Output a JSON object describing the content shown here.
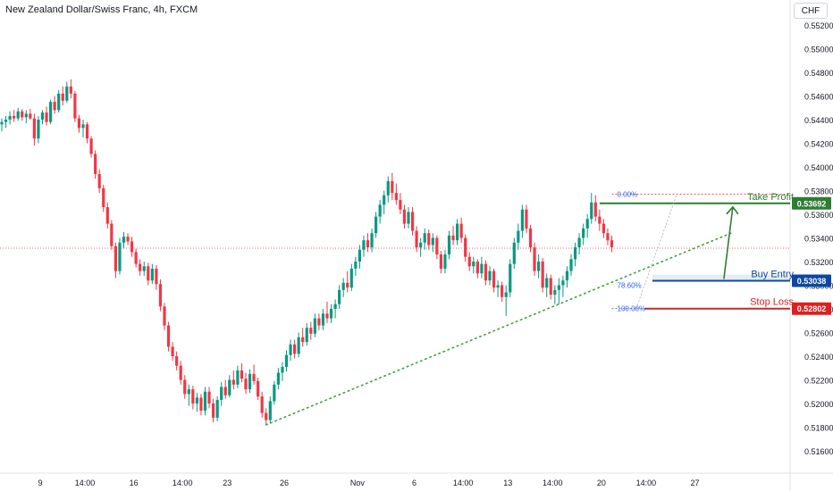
{
  "header": {
    "title": "New Zealand Dollar/Swiss Franc, 4h, FXCM",
    "currency": "CHF"
  },
  "colors": {
    "up": "#089981",
    "down": "#f23645",
    "take_profit": "#2e7d32",
    "buy_entry": "#0d47a1",
    "stop_loss": "#e01e1e",
    "trendline": "#43a047",
    "last_price_line": "#f23645"
  },
  "chart_data": {
    "type": "candlestick",
    "symbol": "New Zealand Dollar/Swiss Franc, 4h, FXCM",
    "y_ticks": [
      "0.55200",
      "0.55000",
      "0.54800",
      "0.54600",
      "0.54400",
      "0.54200",
      "0.54000",
      "0.53800",
      "0.53600",
      "0.53400",
      "0.53200",
      "0.53000",
      "0.52800",
      "0.52600",
      "0.52400",
      "0.52200",
      "0.52000",
      "0.51800",
      "0.51600"
    ],
    "x_ticks": [
      {
        "label": "9",
        "index": 9
      },
      {
        "label": "14:00",
        "index": 20
      },
      {
        "label": "16",
        "index": 32
      },
      {
        "label": "14:00",
        "index": 44
      },
      {
        "label": "23",
        "index": 55
      },
      {
        "label": "26",
        "index": 69
      },
      {
        "label": "Nov",
        "index": 87
      },
      {
        "label": "6",
        "index": 101
      },
      {
        "label": "14:00",
        "index": 113
      },
      {
        "label": "13",
        "index": 124
      },
      {
        "label": "14:00",
        "index": 135
      },
      {
        "label": "20",
        "index": 147
      },
      {
        "label": "14:00",
        "index": 158
      },
      {
        "label": "27",
        "index": 170
      }
    ],
    "ohlc": [
      [
        0.5436,
        0.5441,
        0.543,
        0.5438
      ],
      [
        0.5438,
        0.5443,
        0.5433,
        0.544
      ],
      [
        0.544,
        0.5447,
        0.5436,
        0.5443
      ],
      [
        0.5443,
        0.5448,
        0.5438,
        0.5441
      ],
      [
        0.5441,
        0.545,
        0.5439,
        0.5447
      ],
      [
        0.5447,
        0.5449,
        0.5439,
        0.5442
      ],
      [
        0.5442,
        0.5448,
        0.5437,
        0.5445
      ],
      [
        0.5445,
        0.5449,
        0.544,
        0.5441
      ],
      [
        0.5441,
        0.5445,
        0.5418,
        0.5424
      ],
      [
        0.5424,
        0.5443,
        0.542,
        0.544
      ],
      [
        0.544,
        0.5448,
        0.5436,
        0.5446
      ],
      [
        0.5446,
        0.5451,
        0.5435,
        0.5438
      ],
      [
        0.5438,
        0.5457,
        0.5436,
        0.5455
      ],
      [
        0.5455,
        0.546,
        0.5445,
        0.5448
      ],
      [
        0.5448,
        0.5465,
        0.5446,
        0.5462
      ],
      [
        0.5462,
        0.5468,
        0.5452,
        0.5456
      ],
      [
        0.5456,
        0.5472,
        0.5454,
        0.5468
      ],
      [
        0.5468,
        0.5474,
        0.5458,
        0.5462
      ],
      [
        0.5462,
        0.5464,
        0.5438,
        0.5441
      ],
      [
        0.5441,
        0.5444,
        0.5429,
        0.5433
      ],
      [
        0.5433,
        0.544,
        0.5425,
        0.5436
      ],
      [
        0.5436,
        0.5438,
        0.542,
        0.5424
      ],
      [
        0.5424,
        0.5426,
        0.5408,
        0.5411
      ],
      [
        0.5411,
        0.5414,
        0.539,
        0.5394
      ],
      [
        0.5394,
        0.5398,
        0.5378,
        0.5382
      ],
      [
        0.5382,
        0.5385,
        0.5362,
        0.5366
      ],
      [
        0.5366,
        0.537,
        0.5348,
        0.5352
      ],
      [
        0.5352,
        0.5355,
        0.533,
        0.5333
      ],
      [
        0.5333,
        0.5336,
        0.5306,
        0.5312
      ],
      [
        0.5312,
        0.534,
        0.5309,
        0.5336
      ],
      [
        0.5336,
        0.5345,
        0.5331,
        0.5341
      ],
      [
        0.5341,
        0.5344,
        0.5334,
        0.5337
      ],
      [
        0.5337,
        0.5341,
        0.5324,
        0.5328
      ],
      [
        0.5328,
        0.5331,
        0.5315,
        0.5318
      ],
      [
        0.5318,
        0.5322,
        0.5308,
        0.5312
      ],
      [
        0.5312,
        0.532,
        0.5308,
        0.5316
      ],
      [
        0.5316,
        0.5319,
        0.53,
        0.5304
      ],
      [
        0.5304,
        0.5318,
        0.5301,
        0.5314
      ],
      [
        0.5314,
        0.5317,
        0.5296,
        0.5301
      ],
      [
        0.5301,
        0.5305,
        0.5278,
        0.5282
      ],
      [
        0.5282,
        0.5285,
        0.5262,
        0.5266
      ],
      [
        0.5266,
        0.5269,
        0.5244,
        0.5248
      ],
      [
        0.5248,
        0.5252,
        0.5236,
        0.524
      ],
      [
        0.524,
        0.5244,
        0.5228,
        0.5232
      ],
      [
        0.5232,
        0.5236,
        0.5216,
        0.522
      ],
      [
        0.522,
        0.5224,
        0.5204,
        0.5208
      ],
      [
        0.5208,
        0.5216,
        0.5198,
        0.5212
      ],
      [
        0.5212,
        0.5215,
        0.5195,
        0.52
      ],
      [
        0.52,
        0.5209,
        0.5193,
        0.5205
      ],
      [
        0.5205,
        0.5208,
        0.519,
        0.5194
      ],
      [
        0.5194,
        0.5214,
        0.519,
        0.521
      ],
      [
        0.521,
        0.5214,
        0.5196,
        0.52
      ],
      [
        0.52,
        0.5204,
        0.5184,
        0.5188
      ],
      [
        0.5188,
        0.5206,
        0.5185,
        0.5203
      ],
      [
        0.5203,
        0.5218,
        0.5198,
        0.5214
      ],
      [
        0.5214,
        0.522,
        0.5204,
        0.5207
      ],
      [
        0.5207,
        0.5224,
        0.5205,
        0.522
      ],
      [
        0.522,
        0.5228,
        0.5212,
        0.5216
      ],
      [
        0.5216,
        0.5232,
        0.5213,
        0.5228
      ],
      [
        0.5228,
        0.5234,
        0.5218,
        0.5221
      ],
      [
        0.5221,
        0.5226,
        0.5208,
        0.5212
      ],
      [
        0.5212,
        0.5229,
        0.5209,
        0.5225
      ],
      [
        0.5225,
        0.5233,
        0.5216,
        0.5219
      ],
      [
        0.5219,
        0.5222,
        0.5203,
        0.5206
      ],
      [
        0.5206,
        0.521,
        0.5188,
        0.5192
      ],
      [
        0.5192,
        0.5196,
        0.5182,
        0.5186
      ],
      [
        0.5186,
        0.5206,
        0.5183,
        0.5202
      ],
      [
        0.5202,
        0.5219,
        0.5199,
        0.5216
      ],
      [
        0.5216,
        0.523,
        0.5212,
        0.5226
      ],
      [
        0.5226,
        0.5235,
        0.5219,
        0.5231
      ],
      [
        0.5231,
        0.5245,
        0.5227,
        0.5241
      ],
      [
        0.5241,
        0.5254,
        0.5236,
        0.525
      ],
      [
        0.525,
        0.5254,
        0.5238,
        0.5242
      ],
      [
        0.5242,
        0.526,
        0.5239,
        0.5256
      ],
      [
        0.5256,
        0.5264,
        0.5248,
        0.5252
      ],
      [
        0.5252,
        0.5268,
        0.5249,
        0.5264
      ],
      [
        0.5264,
        0.5269,
        0.5254,
        0.5259
      ],
      [
        0.5259,
        0.5276,
        0.5256,
        0.5272
      ],
      [
        0.5272,
        0.5276,
        0.5262,
        0.5266
      ],
      [
        0.5266,
        0.528,
        0.5262,
        0.5276
      ],
      [
        0.5276,
        0.5286,
        0.5268,
        0.5272
      ],
      [
        0.5272,
        0.5284,
        0.5268,
        0.528
      ],
      [
        0.528,
        0.5288,
        0.5272,
        0.5284
      ],
      [
        0.5284,
        0.53,
        0.528,
        0.5296
      ],
      [
        0.5296,
        0.5306,
        0.529,
        0.5302
      ],
      [
        0.5302,
        0.5312,
        0.5294,
        0.5298
      ],
      [
        0.5298,
        0.5318,
        0.5295,
        0.5314
      ],
      [
        0.5314,
        0.5324,
        0.5308,
        0.532
      ],
      [
        0.532,
        0.5334,
        0.5314,
        0.533
      ],
      [
        0.533,
        0.5342,
        0.5324,
        0.5338
      ],
      [
        0.5338,
        0.5344,
        0.5328,
        0.5332
      ],
      [
        0.5332,
        0.5348,
        0.5328,
        0.5344
      ],
      [
        0.5344,
        0.5362,
        0.534,
        0.5358
      ],
      [
        0.5358,
        0.5372,
        0.5352,
        0.5368
      ],
      [
        0.5368,
        0.538,
        0.536,
        0.5376
      ],
      [
        0.5376,
        0.5392,
        0.537,
        0.5388
      ],
      [
        0.5388,
        0.5395,
        0.5372,
        0.5378
      ],
      [
        0.5378,
        0.5386,
        0.5368,
        0.5372
      ],
      [
        0.5372,
        0.5378,
        0.536,
        0.5364
      ],
      [
        0.5364,
        0.5368,
        0.5348,
        0.5352
      ],
      [
        0.5352,
        0.5366,
        0.5348,
        0.5362
      ],
      [
        0.5362,
        0.5366,
        0.5342,
        0.5346
      ],
      [
        0.5346,
        0.535,
        0.5328,
        0.5332
      ],
      [
        0.5332,
        0.534,
        0.5324,
        0.5336
      ],
      [
        0.5336,
        0.5348,
        0.533,
        0.5344
      ],
      [
        0.5344,
        0.5347,
        0.533,
        0.5334
      ],
      [
        0.5334,
        0.5344,
        0.5328,
        0.534
      ],
      [
        0.534,
        0.5342,
        0.5322,
        0.5326
      ],
      [
        0.5326,
        0.5329,
        0.531,
        0.5314
      ],
      [
        0.5314,
        0.533,
        0.531,
        0.5326
      ],
      [
        0.5326,
        0.5346,
        0.5322,
        0.5342
      ],
      [
        0.5342,
        0.535,
        0.5334,
        0.5338
      ],
      [
        0.5338,
        0.5356,
        0.5334,
        0.5352
      ],
      [
        0.5352,
        0.5357,
        0.5336,
        0.534
      ],
      [
        0.534,
        0.5343,
        0.532,
        0.5324
      ],
      [
        0.5324,
        0.5328,
        0.5312,
        0.5316
      ],
      [
        0.5316,
        0.5324,
        0.531,
        0.532
      ],
      [
        0.532,
        0.5322,
        0.5306,
        0.531
      ],
      [
        0.531,
        0.5324,
        0.5306,
        0.5318
      ],
      [
        0.5318,
        0.5321,
        0.53,
        0.5304
      ],
      [
        0.5304,
        0.5316,
        0.53,
        0.5312
      ],
      [
        0.5312,
        0.5314,
        0.5294,
        0.5298
      ],
      [
        0.5298,
        0.5304,
        0.529,
        0.53
      ],
      [
        0.53,
        0.5303,
        0.5286,
        0.529
      ],
      [
        0.529,
        0.53,
        0.5274,
        0.5294
      ],
      [
        0.5294,
        0.5322,
        0.529,
        0.5318
      ],
      [
        0.5318,
        0.534,
        0.5314,
        0.5336
      ],
      [
        0.5336,
        0.5352,
        0.533,
        0.5346
      ],
      [
        0.5346,
        0.5368,
        0.534,
        0.5364
      ],
      [
        0.5364,
        0.5368,
        0.5344,
        0.5348
      ],
      [
        0.5348,
        0.5351,
        0.5328,
        0.5332
      ],
      [
        0.5332,
        0.5336,
        0.5308,
        0.5312
      ],
      [
        0.5312,
        0.5326,
        0.5306,
        0.532
      ],
      [
        0.532,
        0.5323,
        0.5294,
        0.5298
      ],
      [
        0.5298,
        0.531,
        0.529,
        0.5306
      ],
      [
        0.5306,
        0.5309,
        0.5288,
        0.5292
      ],
      [
        0.5292,
        0.53,
        0.5284,
        0.5296
      ],
      [
        0.5296,
        0.5306,
        0.5284,
        0.53
      ],
      [
        0.53,
        0.5308,
        0.529,
        0.5304
      ],
      [
        0.5304,
        0.5316,
        0.5298,
        0.5312
      ],
      [
        0.5312,
        0.5326,
        0.5308,
        0.5322
      ],
      [
        0.5322,
        0.5336,
        0.5316,
        0.5332
      ],
      [
        0.5332,
        0.5344,
        0.5326,
        0.534
      ],
      [
        0.534,
        0.5352,
        0.5334,
        0.5348
      ],
      [
        0.5348,
        0.536,
        0.534,
        0.5356
      ],
      [
        0.5356,
        0.5378,
        0.5352,
        0.537
      ],
      [
        0.537,
        0.5376,
        0.5354,
        0.5358
      ],
      [
        0.5358,
        0.5364,
        0.5346,
        0.5352
      ],
      [
        0.5352,
        0.5356,
        0.534,
        0.5344
      ],
      [
        0.5344,
        0.5348,
        0.5334,
        0.5338
      ],
      [
        0.5338,
        0.5342,
        0.5328,
        0.5332
      ]
    ],
    "last_price": 0.53313,
    "trendline": {
      "from": {
        "index": 65,
        "price": 0.5182
      },
      "to": {
        "index": 180,
        "price": 0.5345
      }
    },
    "levels": [
      {
        "name": "Take Profit",
        "price": 0.53692,
        "label": "0.53692"
      },
      {
        "name": "Buy Entry",
        "price": 0.53038,
        "label": "0.53038"
      },
      {
        "name": "Stop Loss",
        "price": 0.52802,
        "label": "0.52802"
      }
    ],
    "fib_labels": {
      "top": {
        "label": "0.00%",
        "price": 0.5377
      },
      "mid": {
        "label": "78.60%",
        "price": 0.53
      },
      "bottom": {
        "label": "100.00%",
        "price": 0.52802
      }
    },
    "annotations": [
      "Take Profit",
      "Buy Entry",
      "Stop Loss"
    ]
  }
}
